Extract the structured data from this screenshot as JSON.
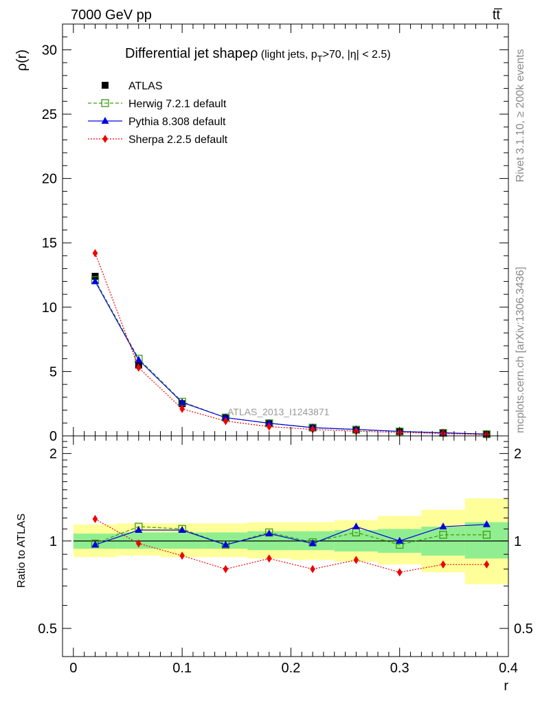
{
  "header": {
    "left": "7000 GeV pp",
    "right": "tt̅"
  },
  "side_labels": {
    "rivet": "Rivet 3.1.10, ≥ 200k events",
    "mcplots": "mcplots.cern.ch [arXiv:1306.3436]"
  },
  "chart_data": [
    {
      "type": "line",
      "title_main": "Differential jet shapeρ",
      "title_sub": " (light jets, p",
      "title_subscript": "T",
      "title_tail": ">70, |η| < 2.5)",
      "ylabel": "ρ(r)",
      "xlabel": "",
      "xlim": [
        -0.01,
        0.4
      ],
      "ylim": [
        0,
        32
      ],
      "x_ticks": [
        0,
        0.1,
        0.2,
        0.3,
        0.4
      ],
      "y_ticks": [
        0,
        5,
        10,
        15,
        20,
        25,
        30
      ],
      "y_tick_labels": [
        "0",
        "5",
        "10",
        "15",
        "20",
        "25",
        "30"
      ],
      "watermark": "ATLAS_2013_I1243871",
      "legend_position": "top-left",
      "x": [
        0.02,
        0.06,
        0.1,
        0.14,
        0.18,
        0.22,
        0.26,
        0.3,
        0.34,
        0.38
      ],
      "series": [
        {
          "name": "ATLAS",
          "color": "#000000",
          "marker": "square-filled",
          "line": "none",
          "values": [
            12.4,
            5.5,
            2.5,
            1.45,
            0.95,
            0.65,
            0.45,
            0.35,
            0.22,
            0.12
          ]
        },
        {
          "name": "Herwig 7.2.1 default",
          "color": "#3a9a10",
          "marker": "square-open",
          "line": "dashed",
          "values": [
            12.1,
            6.0,
            2.65,
            1.42,
            0.98,
            0.64,
            0.48,
            0.34,
            0.23,
            0.13
          ]
        },
        {
          "name": "Pythia 8.308 default",
          "color": "#0000dd",
          "marker": "triangle",
          "line": "solid",
          "values": [
            12.0,
            5.9,
            2.6,
            1.42,
            0.98,
            0.64,
            0.5,
            0.35,
            0.24,
            0.14
          ]
        },
        {
          "name": "Sherpa 2.2.5 default",
          "color": "#ee0000",
          "marker": "diamond",
          "line": "dotted",
          "values": [
            14.2,
            5.3,
            2.1,
            1.15,
            0.72,
            0.5,
            0.36,
            0.27,
            0.18,
            0.1
          ]
        }
      ]
    },
    {
      "type": "line",
      "ylabel": "Ratio to ATLAS",
      "xlabel": "r",
      "xlim": [
        -0.01,
        0.4
      ],
      "ylim": [
        0.4,
        2.3
      ],
      "log_y": true,
      "x_ticks": [
        0,
        0.1,
        0.2,
        0.3,
        0.4
      ],
      "x_tick_labels": [
        "0",
        "0.1",
        "0.2",
        "0.3",
        "0.4"
      ],
      "y_ticks": [
        0.5,
        1,
        2
      ],
      "y_tick_labels": [
        "0.5",
        "1",
        "2"
      ],
      "bin_edges": [
        0,
        0.04,
        0.08,
        0.12,
        0.16,
        0.2,
        0.24,
        0.28,
        0.32,
        0.36,
        0.4
      ],
      "band_stat": {
        "color": "#90ee90",
        "lower": [
          0.94,
          0.94,
          0.94,
          0.94,
          0.93,
          0.93,
          0.92,
          0.91,
          0.89,
          0.87
        ],
        "upper": [
          1.06,
          1.07,
          1.07,
          1.07,
          1.08,
          1.08,
          1.09,
          1.1,
          1.12,
          1.16
        ]
      },
      "band_total": {
        "color": "#ffff99",
        "lower": [
          0.88,
          0.89,
          0.88,
          0.88,
          0.87,
          0.86,
          0.85,
          0.83,
          0.78,
          0.71
        ],
        "upper": [
          1.14,
          1.15,
          1.15,
          1.15,
          1.16,
          1.16,
          1.18,
          1.22,
          1.28,
          1.4
        ]
      },
      "x": [
        0.02,
        0.06,
        0.1,
        0.14,
        0.18,
        0.22,
        0.26,
        0.3,
        0.34,
        0.38
      ],
      "series": [
        {
          "name": "Herwig 7.2.1 default",
          "color": "#3a9a10",
          "marker": "square-open",
          "line": "dashed",
          "values": [
            0.98,
            1.12,
            1.1,
            0.97,
            1.07,
            0.99,
            1.07,
            0.97,
            1.05,
            1.05
          ]
        },
        {
          "name": "Pythia 8.308 default",
          "color": "#0000dd",
          "marker": "triangle",
          "line": "solid",
          "values": [
            0.97,
            1.09,
            1.09,
            0.97,
            1.06,
            0.98,
            1.12,
            1.0,
            1.12,
            1.14
          ]
        },
        {
          "name": "Sherpa 2.2.5 default",
          "color": "#ee0000",
          "marker": "diamond",
          "line": "dotted",
          "values": [
            1.19,
            0.98,
            0.89,
            0.8,
            0.87,
            0.8,
            0.86,
            0.78,
            0.83,
            0.83
          ]
        }
      ]
    }
  ]
}
